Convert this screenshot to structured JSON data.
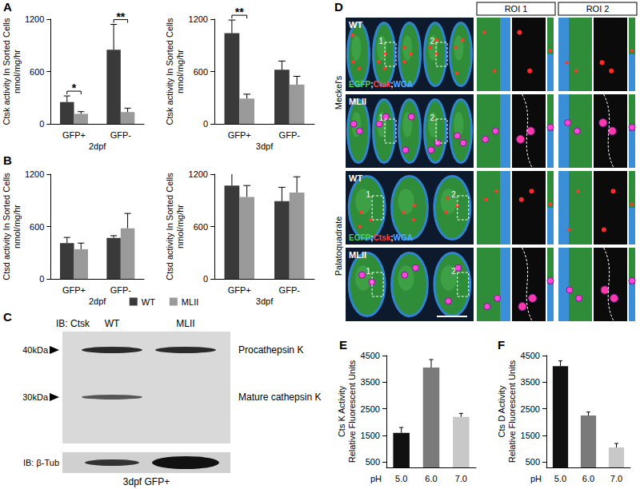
{
  "panel_labels": [
    "A",
    "B",
    "C",
    "D",
    "E",
    "F"
  ],
  "chart_data": [
    {
      "type": "bar",
      "xlabel": "2dpf",
      "ylabel": "Ctsk activity In Sorted Cells\nnmol/mg/hr",
      "categories": [
        "GFP+",
        "GFP-"
      ],
      "series": [
        {
          "name": "WT",
          "color": "#3a3a3a",
          "values": [
            250,
            850
          ],
          "errors": [
            70,
            290
          ]
        },
        {
          "name": "MLII",
          "color": "#9a9a9a",
          "values": [
            115,
            135
          ],
          "errors": [
            25,
            45
          ]
        }
      ],
      "ylim": [
        0,
        1200
      ],
      "yticks": [
        0,
        600,
        1200
      ],
      "grid": false,
      "annotations": [
        {
          "category": "GFP+",
          "text": "*"
        },
        {
          "category": "GFP-",
          "text": "**"
        }
      ]
    },
    {
      "type": "bar",
      "xlabel": "3dpf",
      "ylabel": "Ctsk activity In Sorted Cells\nnmol/mg/hr",
      "categories": [
        "GFP+",
        "GFP-"
      ],
      "series": [
        {
          "name": "WT",
          "color": "#3a3a3a",
          "values": [
            1040,
            620
          ],
          "errors": [
            150,
            100
          ]
        },
        {
          "name": "MLII",
          "color": "#9a9a9a",
          "values": [
            290,
            450
          ],
          "errors": [
            50,
            95
          ]
        }
      ],
      "ylim": [
        0,
        1200
      ],
      "yticks": [
        0,
        600,
        1200
      ],
      "grid": false,
      "annotations": [
        {
          "category": "GFP+",
          "text": "**"
        }
      ]
    },
    {
      "type": "bar",
      "xlabel": "2dpf",
      "ylabel": "Ctsd activity In Sorted Cells\nnmol/mg/hr",
      "categories": [
        "GFP+",
        "GFP-"
      ],
      "series": [
        {
          "name": "WT",
          "color": "#3a3a3a",
          "values": [
            410,
            470
          ],
          "errors": [
            65,
            25
          ]
        },
        {
          "name": "MLII",
          "color": "#9a9a9a",
          "values": [
            340,
            580
          ],
          "errors": [
            70,
            170
          ]
        }
      ],
      "ylim": [
        0,
        1200
      ],
      "yticks": [
        0,
        600,
        1200
      ],
      "grid": false,
      "legend": "bottom"
    },
    {
      "type": "bar",
      "xlabel": "3dpf",
      "ylabel": "Ctsd activity In Sorted Cells\nnmol/mg/hr",
      "categories": [
        "GFP+",
        "GFP-"
      ],
      "series": [
        {
          "name": "WT",
          "color": "#3a3a3a",
          "values": [
            1070,
            890
          ],
          "errors": [
            170,
            160
          ]
        },
        {
          "name": "MLII",
          "color": "#9a9a9a",
          "values": [
            940,
            990
          ],
          "errors": [
            130,
            180
          ]
        }
      ],
      "ylim": [
        0,
        1200
      ],
      "yticks": [
        0,
        600,
        1200
      ],
      "grid": false,
      "legend": "bottom"
    },
    {
      "type": "bar",
      "xlabel": "pH",
      "ylabel": "Cts K Activity\nRelative Fluorescent Units",
      "categories": [
        "5.0",
        "6.0",
        "7.0"
      ],
      "values": [
        1600,
        4050,
        2200
      ],
      "errors": [
        200,
        300,
        130
      ],
      "colors": [
        "#111111",
        "#7a7a7a",
        "#c8c8c8"
      ],
      "ylim": [
        300,
        4500
      ],
      "yticks": [
        500,
        1500,
        2500,
        3500,
        4500
      ],
      "grid": false
    },
    {
      "type": "bar",
      "xlabel": "pH",
      "ylabel": "Cts D Activity\nRelative Fluorescent Units",
      "categories": [
        "5.0",
        "6.0",
        "7.0"
      ],
      "values": [
        4100,
        2250,
        1050
      ],
      "errors": [
        200,
        130,
        150
      ],
      "colors": [
        "#111111",
        "#7a7a7a",
        "#c8c8c8"
      ],
      "ylim": [
        300,
        4500
      ],
      "yticks": [
        500,
        1500,
        2500,
        3500,
        4500
      ],
      "grid": false
    }
  ],
  "blot": {
    "probe": "IB: Ctsk",
    "lanes": [
      "WT",
      "MLII"
    ],
    "markers": [
      {
        "label": "40kDa",
        "band": "Procathepsin K",
        "present": [
          "WT",
          "MLII"
        ]
      },
      {
        "label": "30kDa",
        "band": "Mature cathepsin K",
        "present": [
          "WT"
        ]
      }
    ],
    "loading_control": "IB: β-Tub",
    "sample": "3dpf GFP+"
  },
  "micrographs": {
    "columns": [
      "ROI 1",
      "ROI 2"
    ],
    "stain": "EGFP;Ctsk;WGA",
    "roi_numbers": [
      "1",
      "2"
    ],
    "groups": [
      {
        "tissue": "Meckel's",
        "rows": [
          "WT",
          "MLII"
        ]
      },
      {
        "tissue": "Palatoquadrate",
        "rows": [
          "WT",
          "MLII"
        ]
      }
    ]
  }
}
